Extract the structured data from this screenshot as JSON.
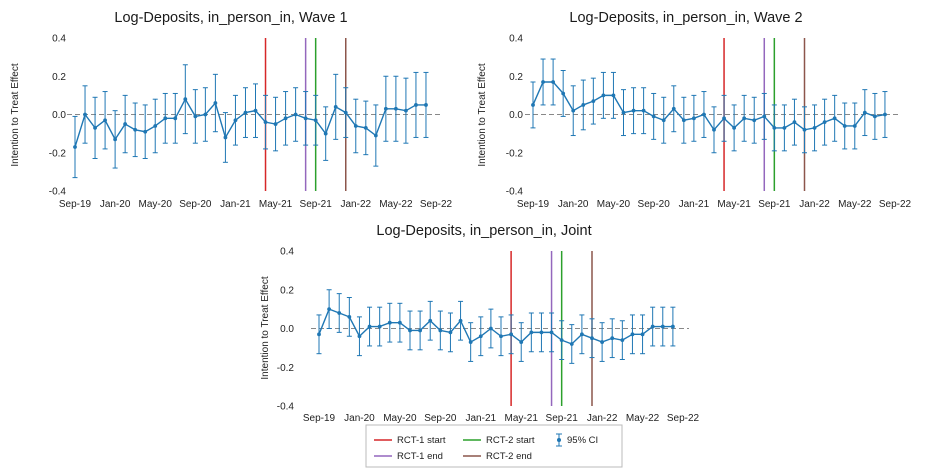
{
  "chart_data": [
    {
      "type": "scatter",
      "title": "Log-Deposits, in_person_in, Wave 1",
      "ylabel": "Intention to Treat Effect",
      "xlabel": "",
      "ylim": [
        -0.4,
        0.4
      ],
      "yticks": [
        "0.4",
        "0.2",
        "0.0",
        "-0.2",
        "-0.4"
      ],
      "xtick_labels": [
        "Sep-19",
        "Jan-20",
        "May-20",
        "Sep-20",
        "Jan-21",
        "May-21",
        "Sep-21",
        "Jan-22",
        "May-22",
        "Sep-22"
      ],
      "x": [
        "2019-09",
        "2019-10",
        "2019-11",
        "2019-12",
        "2020-01",
        "2020-02",
        "2020-03",
        "2020-04",
        "2020-05",
        "2020-06",
        "2020-07",
        "2020-08",
        "2020-09",
        "2020-10",
        "2020-11",
        "2020-12",
        "2021-01",
        "2021-02",
        "2021-03",
        "2021-04",
        "2021-05",
        "2021-06",
        "2021-07",
        "2021-08",
        "2021-09",
        "2021-10",
        "2021-11",
        "2021-12",
        "2022-01",
        "2022-02",
        "2022-03",
        "2022-04",
        "2022-05",
        "2022-06",
        "2022-07",
        "2022-08"
      ],
      "series": [
        {
          "values": [
            -0.17,
            0.0,
            -0.07,
            -0.03,
            -0.13,
            -0.05,
            -0.08,
            -0.09,
            -0.06,
            -0.02,
            -0.02,
            0.08,
            -0.01,
            0.0,
            0.06,
            -0.12,
            -0.03,
            0.01,
            0.02,
            -0.04,
            -0.05,
            -0.02,
            0.0,
            -0.02,
            -0.03,
            -0.1,
            0.04,
            0.01,
            -0.06,
            -0.07,
            -0.11,
            0.03,
            0.03,
            0.02,
            0.05,
            0.05
          ],
          "ci_half": [
            0.16,
            0.15,
            0.16,
            0.15,
            0.15,
            0.15,
            0.14,
            0.14,
            0.14,
            0.13,
            0.13,
            0.18,
            0.14,
            0.14,
            0.15,
            0.13,
            0.13,
            0.13,
            0.14,
            0.14,
            0.14,
            0.14,
            0.14,
            0.14,
            0.13,
            0.14,
            0.17,
            0.13,
            0.14,
            0.14,
            0.16,
            0.17,
            0.17,
            0.17,
            0.17,
            0.17
          ]
        }
      ],
      "vlines": [
        {
          "x": "2021-04",
          "color": "#d62728"
        },
        {
          "x": "2021-08",
          "color": "#9467bd"
        },
        {
          "x": "2021-09",
          "color": "#2ca02c"
        },
        {
          "x": "2021-12",
          "color": "#8c564b"
        }
      ],
      "zero_line": true
    },
    {
      "type": "scatter",
      "title": "Log-Deposits, in_person_in, Wave 2",
      "ylabel": "Intention to Treat Effect",
      "xlabel": "",
      "ylim": [
        -0.4,
        0.4
      ],
      "yticks": [
        "0.4",
        "0.2",
        "0.0",
        "-0.2",
        "-0.4"
      ],
      "xtick_labels": [
        "Sep-19",
        "Jan-20",
        "May-20",
        "Sep-20",
        "Jan-21",
        "May-21",
        "Sep-21",
        "Jan-22",
        "May-22",
        "Sep-22"
      ],
      "x": [
        "2019-09",
        "2019-10",
        "2019-11",
        "2019-12",
        "2020-01",
        "2020-02",
        "2020-03",
        "2020-04",
        "2020-05",
        "2020-06",
        "2020-07",
        "2020-08",
        "2020-09",
        "2020-10",
        "2020-11",
        "2020-12",
        "2021-01",
        "2021-02",
        "2021-03",
        "2021-04",
        "2021-05",
        "2021-06",
        "2021-07",
        "2021-08",
        "2021-09",
        "2021-10",
        "2021-11",
        "2021-12",
        "2022-01",
        "2022-02",
        "2022-03",
        "2022-04",
        "2022-05",
        "2022-06",
        "2022-07",
        "2022-08"
      ],
      "series": [
        {
          "values": [
            0.05,
            0.17,
            0.17,
            0.11,
            0.02,
            0.05,
            0.07,
            0.1,
            0.1,
            0.01,
            0.02,
            0.02,
            -0.01,
            -0.03,
            0.03,
            -0.03,
            -0.02,
            0.0,
            -0.08,
            -0.02,
            -0.07,
            -0.02,
            -0.03,
            -0.01,
            -0.07,
            -0.07,
            -0.04,
            -0.08,
            -0.07,
            -0.04,
            -0.02,
            -0.06,
            -0.06,
            0.01,
            -0.01,
            0.0
          ],
          "ci_half": [
            0.12,
            0.12,
            0.12,
            0.12,
            0.13,
            0.13,
            0.12,
            0.12,
            0.12,
            0.12,
            0.12,
            0.12,
            0.12,
            0.12,
            0.12,
            0.12,
            0.12,
            0.12,
            0.12,
            0.12,
            0.12,
            0.12,
            0.12,
            0.12,
            0.12,
            0.12,
            0.12,
            0.12,
            0.12,
            0.12,
            0.12,
            0.12,
            0.12,
            0.12,
            0.12,
            0.12
          ]
        }
      ],
      "vlines": [
        {
          "x": "2021-04",
          "color": "#d62728"
        },
        {
          "x": "2021-08",
          "color": "#9467bd"
        },
        {
          "x": "2021-09",
          "color": "#2ca02c"
        },
        {
          "x": "2021-12",
          "color": "#8c564b"
        }
      ],
      "zero_line": true
    },
    {
      "type": "scatter",
      "title": "Log-Deposits, in_person_in, Joint",
      "ylabel": "Intention to Treat Effect",
      "xlabel": "",
      "ylim": [
        -0.4,
        0.4
      ],
      "yticks": [
        "0.4",
        "0.2",
        "0.0",
        "-0.2",
        "-0.4"
      ],
      "xtick_labels": [
        "Sep-19",
        "Jan-20",
        "May-20",
        "Sep-20",
        "Jan-21",
        "May-21",
        "Sep-21",
        "Jan-22",
        "May-22",
        "Sep-22"
      ],
      "x": [
        "2019-09",
        "2019-10",
        "2019-11",
        "2019-12",
        "2020-01",
        "2020-02",
        "2020-03",
        "2020-04",
        "2020-05",
        "2020-06",
        "2020-07",
        "2020-08",
        "2020-09",
        "2020-10",
        "2020-11",
        "2020-12",
        "2021-01",
        "2021-02",
        "2021-03",
        "2021-04",
        "2021-05",
        "2021-06",
        "2021-07",
        "2021-08",
        "2021-09",
        "2021-10",
        "2021-11",
        "2021-12",
        "2022-01",
        "2022-02",
        "2022-03",
        "2022-04",
        "2022-05",
        "2022-06",
        "2022-07",
        "2022-08"
      ],
      "series": [
        {
          "values": [
            -0.03,
            0.1,
            0.08,
            0.06,
            -0.04,
            0.01,
            0.01,
            0.03,
            0.03,
            -0.01,
            -0.01,
            0.04,
            -0.01,
            -0.02,
            0.04,
            -0.07,
            -0.04,
            0.0,
            -0.04,
            -0.03,
            -0.07,
            -0.02,
            -0.02,
            -0.02,
            -0.06,
            -0.08,
            -0.03,
            -0.05,
            -0.07,
            -0.05,
            -0.06,
            -0.03,
            -0.03,
            0.01,
            0.01,
            0.01
          ],
          "ci_half": [
            0.1,
            0.1,
            0.1,
            0.1,
            0.1,
            0.1,
            0.1,
            0.1,
            0.1,
            0.1,
            0.1,
            0.1,
            0.1,
            0.1,
            0.1,
            0.1,
            0.1,
            0.1,
            0.1,
            0.1,
            0.1,
            0.1,
            0.1,
            0.1,
            0.1,
            0.1,
            0.1,
            0.1,
            0.1,
            0.1,
            0.1,
            0.1,
            0.1,
            0.1,
            0.1,
            0.1
          ]
        }
      ],
      "vlines": [
        {
          "x": "2021-04",
          "color": "#d62728"
        },
        {
          "x": "2021-08",
          "color": "#9467bd"
        },
        {
          "x": "2021-09",
          "color": "#2ca02c"
        },
        {
          "x": "2021-12",
          "color": "#8c564b"
        }
      ],
      "zero_line": true
    }
  ],
  "legend": {
    "placement": "bottom-center",
    "entries": [
      {
        "label": "RCT-1 start",
        "color": "#d62728",
        "kind": "line"
      },
      {
        "label": "RCT-2 start",
        "color": "#2ca02c",
        "kind": "line"
      },
      {
        "label": "95% CI",
        "color": "#1f77b4",
        "kind": "errorbar"
      },
      {
        "label": "RCT-1 end",
        "color": "#9467bd",
        "kind": "line"
      },
      {
        "label": "RCT-2 end",
        "color": "#8c564b",
        "kind": "line"
      }
    ]
  },
  "style": {
    "point_color": "#1f77b4",
    "zero_line_color": "#888888"
  }
}
